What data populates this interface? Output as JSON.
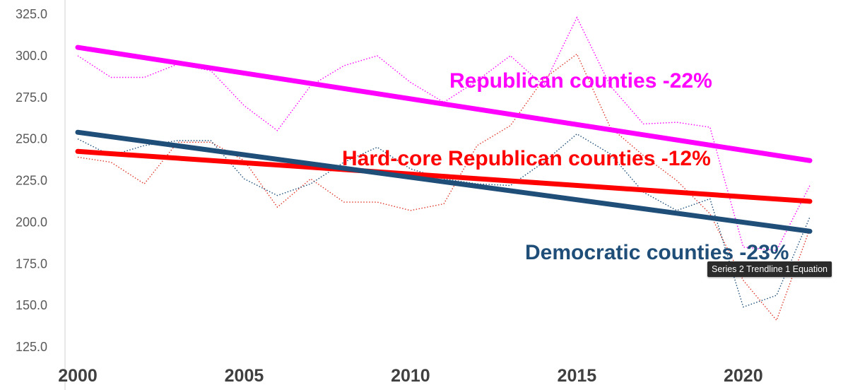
{
  "chart_data": {
    "type": "line",
    "title": "",
    "xlabel": "",
    "ylabel": "",
    "xlim": [
      2000,
      2022
    ],
    "ylim": [
      125,
      325
    ],
    "x_ticks": [
      "2000",
      "2005",
      "2010",
      "2015",
      "2020"
    ],
    "y_ticks": [
      "125.0",
      "150.0",
      "175.0",
      "200.0",
      "225.0",
      "250.0",
      "275.0",
      "300.0",
      "325.0"
    ],
    "grid": false,
    "legend": "none",
    "x": [
      2000,
      2001,
      2002,
      2003,
      2004,
      2005,
      2006,
      2007,
      2008,
      2009,
      2010,
      2011,
      2012,
      2013,
      2014,
      2015,
      2016,
      2017,
      2018,
      2019,
      2020,
      2021,
      2022
    ],
    "series": [
      {
        "color": "#ff00ff",
        "style": "dotted",
        "values": [
          300,
          287,
          287,
          295,
          291,
          270,
          255,
          282,
          294,
          300,
          284,
          272,
          285,
          300,
          282,
          323,
          282,
          259,
          260,
          257,
          185,
          183,
          222
        ]
      },
      {
        "color": "#e03a2e",
        "style": "dotted",
        "values": [
          239,
          236,
          223,
          248,
          248,
          237,
          209,
          226,
          212,
          212,
          207,
          211,
          246,
          258,
          286,
          301,
          257,
          240,
          225,
          205,
          165,
          141,
          196
        ]
      },
      {
        "color": "#1f4e79",
        "style": "dotted",
        "values": [
          250,
          240,
          246,
          249,
          249,
          226,
          216,
          223,
          236,
          245,
          232,
          226,
          223,
          222,
          236,
          253,
          241,
          218,
          207,
          214,
          149,
          156,
          203
        ]
      }
    ],
    "trendlines": [
      {
        "color": "#ff00ff",
        "start": 305,
        "end": 237
      },
      {
        "color": "#ff0000",
        "start": 242.5,
        "end": 212.5
      },
      {
        "color": "#1f4e79",
        "start": 254,
        "end": 194.5
      }
    ],
    "annotations": [
      {
        "text": "Republican counties -22%",
        "color": "#ff00ff"
      },
      {
        "text": "Hard-core Republican counties -12%",
        "color": "#ff0000"
      },
      {
        "text": "Democratic counties -23%",
        "color": "#1f4e79"
      }
    ]
  },
  "tooltip": {
    "text": "Series 2 Trendline 1 Equation"
  }
}
